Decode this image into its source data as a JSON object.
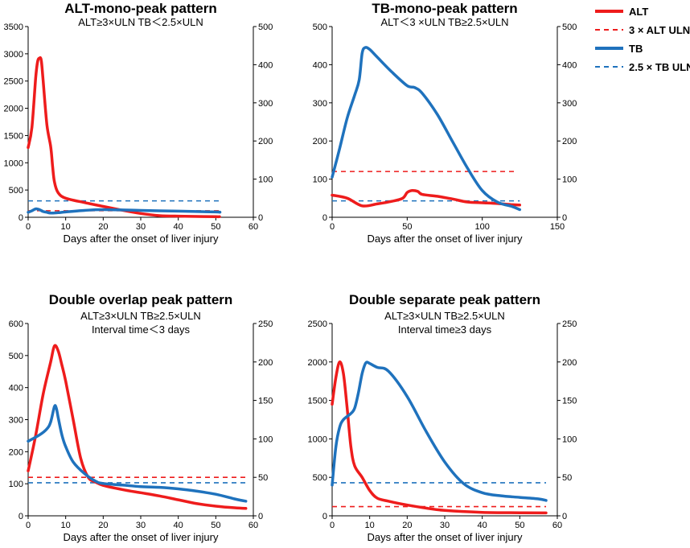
{
  "colors": {
    "alt": "#ee1c1c",
    "tb": "#1f72bd"
  },
  "legend": {
    "items": [
      {
        "label": "ALT",
        "color": "#ee1c1c",
        "dash": false
      },
      {
        "label": "3 × ALT ULN",
        "color": "#ee1c1c",
        "dash": true
      },
      {
        "label": "TB",
        "color": "#1f72bd",
        "dash": false
      },
      {
        "label": "2.5 × TB ULN",
        "color": "#1f72bd",
        "dash": true
      }
    ]
  },
  "chart_data": [
    {
      "type": "line",
      "title": "ALT-mono-peak pattern",
      "subtitles": [
        "ALT≥3×ULN  TB＜2.5×ULN"
      ],
      "xlabel": "Days after the onset of liver injury",
      "xlim": [
        0,
        60
      ],
      "xticks": [
        0,
        10,
        20,
        30,
        40,
        50,
        60
      ],
      "ylim_left": [
        0,
        3500
      ],
      "yticks_left": [
        0,
        500,
        1000,
        1500,
        2000,
        2500,
        3000,
        3500
      ],
      "ylim_right": [
        0,
        500
      ],
      "yticks_right": [
        0,
        100,
        200,
        300,
        400,
        500
      ],
      "series": [
        {
          "name": "ALT",
          "axis": "left",
          "style": "solid",
          "x": [
            0,
            1,
            2,
            2.5,
            3,
            3.5,
            4,
            5,
            6,
            6.5,
            7,
            8,
            10,
            15,
            20,
            25,
            30,
            35,
            40,
            45,
            50,
            51
          ],
          "y": [
            1280,
            1650,
            2550,
            2850,
            2920,
            2880,
            2500,
            1700,
            1300,
            950,
            650,
            450,
            350,
            270,
            200,
            130,
            70,
            30,
            20,
            15,
            10,
            10
          ]
        },
        {
          "name": "3 × ALT ULN",
          "axis": "left",
          "style": "dashed",
          "x": [
            0,
            51
          ],
          "y": [
            120,
            120
          ]
        },
        {
          "name": "TB",
          "axis": "right",
          "style": "solid",
          "x": [
            0,
            1,
            2,
            3,
            4,
            5,
            6,
            8,
            10,
            15,
            20,
            30,
            40,
            50,
            51
          ],
          "y": [
            13,
            17,
            22,
            20,
            15,
            13,
            11,
            12,
            14,
            18,
            20,
            18,
            16,
            14,
            13
          ]
        },
        {
          "name": "2.5 × TB ULN",
          "axis": "right",
          "style": "dashed",
          "x": [
            0,
            51
          ],
          "y": [
            43,
            43
          ]
        }
      ]
    },
    {
      "type": "line",
      "title": "TB-mono-peak pattern",
      "subtitles": [
        "ALT＜3 ×ULN TB≥2.5×ULN"
      ],
      "xlabel": "Days after the onset of liver injury",
      "xlim": [
        0,
        150
      ],
      "xticks": [
        0,
        50,
        100,
        150
      ],
      "ylim_left": [
        0,
        500
      ],
      "yticks_left": [
        0,
        100,
        200,
        300,
        400,
        500
      ],
      "ylim_right": [
        0,
        500
      ],
      "yticks_right": [
        0,
        100,
        200,
        300,
        400,
        500
      ],
      "series": [
        {
          "name": "ALT",
          "axis": "left",
          "style": "solid",
          "x": [
            0,
            10,
            20,
            30,
            40,
            47,
            50,
            53,
            57,
            60,
            70,
            80,
            90,
            100,
            110,
            120,
            125
          ],
          "y": [
            58,
            50,
            30,
            35,
            42,
            50,
            65,
            70,
            68,
            60,
            55,
            48,
            40,
            38,
            36,
            33,
            32
          ]
        },
        {
          "name": "3 × ALT ULN",
          "axis": "left",
          "style": "dashed",
          "x": [
            0,
            122
          ],
          "y": [
            120,
            120
          ]
        },
        {
          "name": "TB",
          "axis": "right",
          "style": "solid",
          "x": [
            0,
            5,
            10,
            15,
            18,
            20,
            22,
            25,
            30,
            40,
            50,
            55,
            60,
            70,
            80,
            90,
            100,
            110,
            120,
            125
          ],
          "y": [
            105,
            180,
            260,
            320,
            360,
            430,
            445,
            440,
            420,
            380,
            345,
            340,
            325,
            270,
            200,
            130,
            70,
            40,
            28,
            20
          ]
        },
        {
          "name": "2.5 × TB ULN",
          "axis": "right",
          "style": "dashed",
          "x": [
            0,
            125
          ],
          "y": [
            43,
            43
          ]
        }
      ]
    },
    {
      "type": "line",
      "title": "Double overlap peak pattern",
      "subtitles": [
        "ALT≥3×ULN  TB≥2.5×ULN",
        "Interval time＜3 days"
      ],
      "xlabel": "Days after the onset of liver injury",
      "xlim": [
        0,
        60
      ],
      "xticks": [
        0,
        10,
        20,
        30,
        40,
        50,
        60
      ],
      "ylim_left": [
        0,
        600
      ],
      "yticks_left": [
        0,
        100,
        200,
        300,
        400,
        500,
        600
      ],
      "ylim_right": [
        0,
        250
      ],
      "yticks_right": [
        0,
        50,
        100,
        150,
        200,
        250
      ],
      "series": [
        {
          "name": "ALT",
          "axis": "left",
          "style": "solid",
          "x": [
            0,
            2,
            4,
            6,
            7,
            8,
            9,
            10,
            12,
            14,
            16,
            18,
            20,
            25,
            30,
            35,
            40,
            45,
            50,
            55,
            58
          ],
          "y": [
            140,
            250,
            380,
            480,
            530,
            515,
            470,
            420,
            300,
            180,
            120,
            105,
            95,
            82,
            72,
            62,
            50,
            38,
            30,
            25,
            23
          ]
        },
        {
          "name": "3 × ALT ULN",
          "axis": "left",
          "style": "dashed",
          "x": [
            0,
            58
          ],
          "y": [
            120,
            120
          ]
        },
        {
          "name": "TB",
          "axis": "right",
          "style": "solid",
          "x": [
            0,
            3,
            5,
            6,
            7,
            7.5,
            8,
            9,
            10,
            12,
            15,
            18,
            20,
            25,
            30,
            35,
            40,
            45,
            50,
            55,
            58
          ],
          "y": [
            97,
            105,
            113,
            122,
            142,
            140,
            128,
            105,
            90,
            70,
            55,
            45,
            42,
            40,
            38,
            37,
            35,
            32,
            28,
            22,
            19
          ]
        },
        {
          "name": "2.5 × TB ULN",
          "axis": "right",
          "style": "dashed",
          "x": [
            0,
            58
          ],
          "y": [
            43,
            43
          ]
        }
      ]
    },
    {
      "type": "line",
      "title": "Double separate peak pattern",
      "subtitles": [
        "ALT≥3×ULN  TB≥2.5×ULN",
        "Interval time≥3 days"
      ],
      "xlabel": "Days after the onset of liver injury",
      "xlim": [
        0,
        60
      ],
      "xticks": [
        0,
        10,
        20,
        30,
        40,
        50,
        60
      ],
      "ylim_left": [
        0,
        2500
      ],
      "yticks_left": [
        0,
        500,
        1000,
        1500,
        2000,
        2500
      ],
      "ylim_right": [
        0,
        250
      ],
      "yticks_right": [
        0,
        50,
        100,
        150,
        200,
        250
      ],
      "series": [
        {
          "name": "ALT",
          "axis": "left",
          "style": "solid",
          "x": [
            0,
            1,
            2,
            3,
            4,
            5,
            6,
            8,
            10,
            12,
            15,
            20,
            25,
            30,
            40,
            50,
            57
          ],
          "y": [
            1450,
            1800,
            2000,
            1850,
            1400,
            900,
            650,
            500,
            330,
            230,
            190,
            140,
            100,
            70,
            45,
            40,
            38
          ]
        },
        {
          "name": "3 × ALT ULN",
          "axis": "left",
          "style": "dashed",
          "x": [
            0,
            57
          ],
          "y": [
            120,
            120
          ]
        },
        {
          "name": "TB",
          "axis": "right",
          "style": "solid",
          "x": [
            0,
            1,
            2,
            3,
            5,
            6,
            7,
            8,
            9,
            10,
            12,
            15,
            20,
            25,
            30,
            35,
            40,
            45,
            50,
            55,
            57
          ],
          "y": [
            40,
            90,
            115,
            125,
            133,
            140,
            160,
            185,
            199,
            198,
            193,
            188,
            155,
            110,
            70,
            42,
            30,
            26,
            24,
            22,
            20
          ]
        },
        {
          "name": "2.5 × TB ULN",
          "axis": "right",
          "style": "dashed",
          "x": [
            0,
            57
          ],
          "y": [
            43,
            43
          ]
        }
      ]
    }
  ]
}
